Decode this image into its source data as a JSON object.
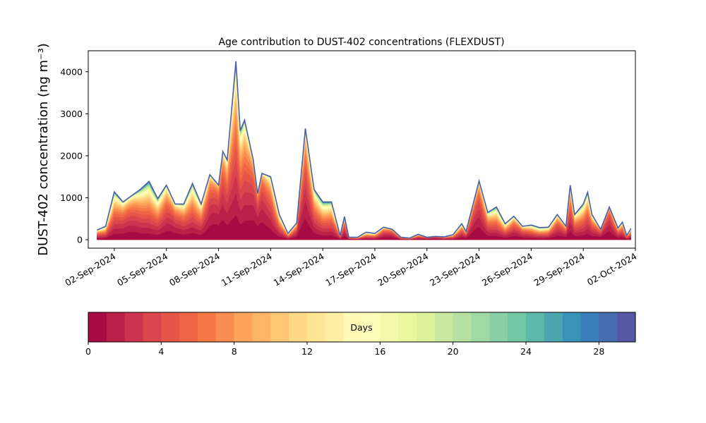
{
  "chart_data": {
    "type": "area",
    "stacked": true,
    "title": "Age contribution to DUST-402 concentrations (FLEXDUST)",
    "ylabel": "DUST-402 concentration (ng m⁻³)",
    "xlabel": "",
    "ylim": [
      -200,
      4500
    ],
    "yticks": [
      0,
      1000,
      2000,
      3000,
      4000
    ],
    "x_start": "2024-09-01",
    "x_end": "2024-09-30",
    "xlim": [
      "2024-08-31T12:00",
      "2024-10-02T00:00"
    ],
    "xticks": [
      "02-Sep-2024",
      "05-Sep-2024",
      "08-Sep-2024",
      "11-Sep-2024",
      "14-Sep-2024",
      "17-Sep-2024",
      "20-Sep-2024",
      "23-Sep-2024",
      "26-Sep-2024",
      "29-Sep-2024",
      "02-Oct-2024"
    ],
    "total_concentration": [
      {
        "x": "2024-09-01",
        "y": 230
      },
      {
        "x": "2024-09-01T12:00",
        "y": 320
      },
      {
        "x": "2024-09-02",
        "y": 1140
      },
      {
        "x": "2024-09-02T12:00",
        "y": 900
      },
      {
        "x": "2024-09-03",
        "y": 1050
      },
      {
        "x": "2024-09-03T12:00",
        "y": 1200
      },
      {
        "x": "2024-09-04",
        "y": 1390
      },
      {
        "x": "2024-09-04T12:00",
        "y": 980
      },
      {
        "x": "2024-09-05",
        "y": 1300
      },
      {
        "x": "2024-09-05T12:00",
        "y": 850
      },
      {
        "x": "2024-09-06",
        "y": 850
      },
      {
        "x": "2024-09-06T12:00",
        "y": 1340
      },
      {
        "x": "2024-09-07",
        "y": 850
      },
      {
        "x": "2024-09-07T12:00",
        "y": 1550
      },
      {
        "x": "2024-09-08",
        "y": 1300
      },
      {
        "x": "2024-09-08T06:00",
        "y": 2100
      },
      {
        "x": "2024-09-08T12:00",
        "y": 1900
      },
      {
        "x": "2024-09-09",
        "y": 4250
      },
      {
        "x": "2024-09-09T06:00",
        "y": 2600
      },
      {
        "x": "2024-09-09T12:00",
        "y": 2850
      },
      {
        "x": "2024-09-10",
        "y": 1900
      },
      {
        "x": "2024-09-10T06:00",
        "y": 1100
      },
      {
        "x": "2024-09-10T12:00",
        "y": 1580
      },
      {
        "x": "2024-09-11",
        "y": 1500
      },
      {
        "x": "2024-09-11T12:00",
        "y": 600
      },
      {
        "x": "2024-09-12",
        "y": 150
      },
      {
        "x": "2024-09-12T12:00",
        "y": 400
      },
      {
        "x": "2024-09-13",
        "y": 2650
      },
      {
        "x": "2024-09-13T12:00",
        "y": 1200
      },
      {
        "x": "2024-09-14",
        "y": 900
      },
      {
        "x": "2024-09-14T12:00",
        "y": 900
      },
      {
        "x": "2024-09-15",
        "y": 100
      },
      {
        "x": "2024-09-15T06:00",
        "y": 550
      },
      {
        "x": "2024-09-15T12:00",
        "y": 60
      },
      {
        "x": "2024-09-16",
        "y": 60
      },
      {
        "x": "2024-09-16T12:00",
        "y": 180
      },
      {
        "x": "2024-09-17",
        "y": 150
      },
      {
        "x": "2024-09-17T12:00",
        "y": 300
      },
      {
        "x": "2024-09-18",
        "y": 250
      },
      {
        "x": "2024-09-18T12:00",
        "y": 60
      },
      {
        "x": "2024-09-19",
        "y": 40
      },
      {
        "x": "2024-09-19T12:00",
        "y": 130
      },
      {
        "x": "2024-09-20",
        "y": 60
      },
      {
        "x": "2024-09-20T12:00",
        "y": 80
      },
      {
        "x": "2024-09-21",
        "y": 70
      },
      {
        "x": "2024-09-21T12:00",
        "y": 120
      },
      {
        "x": "2024-09-22",
        "y": 380
      },
      {
        "x": "2024-09-22T06:00",
        "y": 200
      },
      {
        "x": "2024-09-23",
        "y": 1400
      },
      {
        "x": "2024-09-23T12:00",
        "y": 650
      },
      {
        "x": "2024-09-24",
        "y": 780
      },
      {
        "x": "2024-09-24T12:00",
        "y": 380
      },
      {
        "x": "2024-09-25",
        "y": 560
      },
      {
        "x": "2024-09-25T12:00",
        "y": 320
      },
      {
        "x": "2024-09-26",
        "y": 350
      },
      {
        "x": "2024-09-26T12:00",
        "y": 290
      },
      {
        "x": "2024-09-27",
        "y": 300
      },
      {
        "x": "2024-09-27T12:00",
        "y": 600
      },
      {
        "x": "2024-09-28",
        "y": 320
      },
      {
        "x": "2024-09-28T06:00",
        "y": 1300
      },
      {
        "x": "2024-09-28T12:00",
        "y": 600
      },
      {
        "x": "2024-09-29",
        "y": 850
      },
      {
        "x": "2024-09-29T06:00",
        "y": 1130
      },
      {
        "x": "2024-09-29T12:00",
        "y": 600
      },
      {
        "x": "2024-09-30",
        "y": 250
      },
      {
        "x": "2024-09-30T12:00",
        "y": 780
      },
      {
        "x": "2024-10-01",
        "y": 280
      },
      {
        "x": "2024-10-01T06:00",
        "y": 420
      },
      {
        "x": "2024-10-01T12:00",
        "y": 100
      },
      {
        "x": "2024-10-01T18:00",
        "y": 270
      }
    ],
    "colorbar": {
      "label": "Days",
      "range": [
        0,
        30
      ],
      "ticks": [
        0,
        4,
        8,
        12,
        16,
        20,
        24,
        28
      ],
      "n_bins": 30,
      "colormap": "Spectral"
    }
  }
}
